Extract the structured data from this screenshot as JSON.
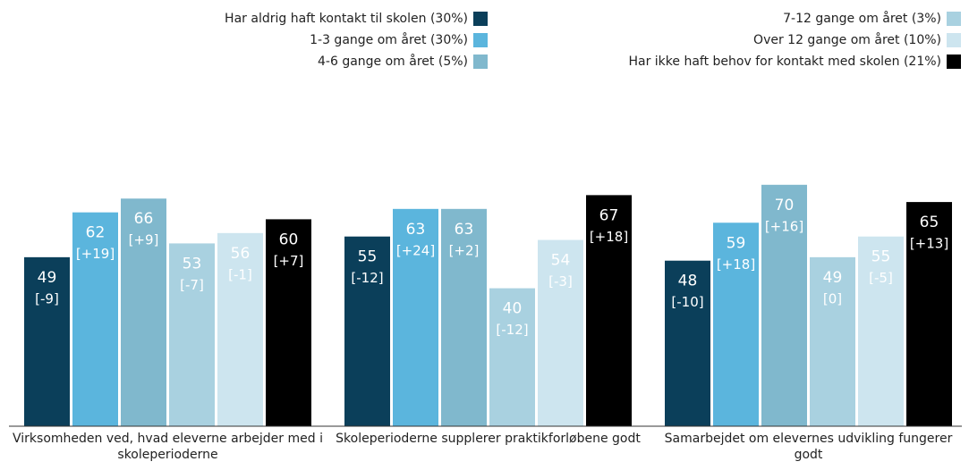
{
  "chart_data": {
    "type": "bar",
    "categories": [
      "Virksomheden ved, hvad eleverne arbejder med i skoleperioderne",
      "Skoleperioderne supplerer praktikforløbene godt",
      "Samarbejdet om elevernes udvikling fungerer godt"
    ],
    "series": [
      {
        "name": "Har aldrig haft kontakt til skolen (30%)",
        "color": "#0b3f5a",
        "values": [
          49,
          55,
          48
        ],
        "diff_labels": [
          "[-9]",
          "[-12]",
          "[-10]"
        ]
      },
      {
        "name": "1-3 gange om året (30%)",
        "color": "#5bb5dd",
        "values": [
          62,
          63,
          59
        ],
        "diff_labels": [
          "[+19]",
          "[+24]",
          "[+18]"
        ]
      },
      {
        "name": "4-6 gange om året (5%)",
        "color": "#80b8cd",
        "values": [
          66,
          63,
          70
        ],
        "diff_labels": [
          "[+9]",
          "[+2]",
          "[+16]"
        ]
      },
      {
        "name": "7-12 gange om året (3%)",
        "color": "#a9d1e0",
        "values": [
          53,
          40,
          49
        ],
        "diff_labels": [
          "[-7]",
          "[-12]",
          "[0]"
        ]
      },
      {
        "name": "Over 12 gange om året (10%)",
        "color": "#cde5ef",
        "values": [
          56,
          54,
          55
        ],
        "diff_labels": [
          "[-1]",
          "[-3]",
          "[-5]"
        ]
      },
      {
        "name": "Har ikke haft behov for kontakt med skolen (21%)",
        "color": "#000000",
        "values": [
          60,
          67,
          65
        ],
        "diff_labels": [
          "[+7]",
          "[+18]",
          "[+13]"
        ]
      }
    ]
  }
}
